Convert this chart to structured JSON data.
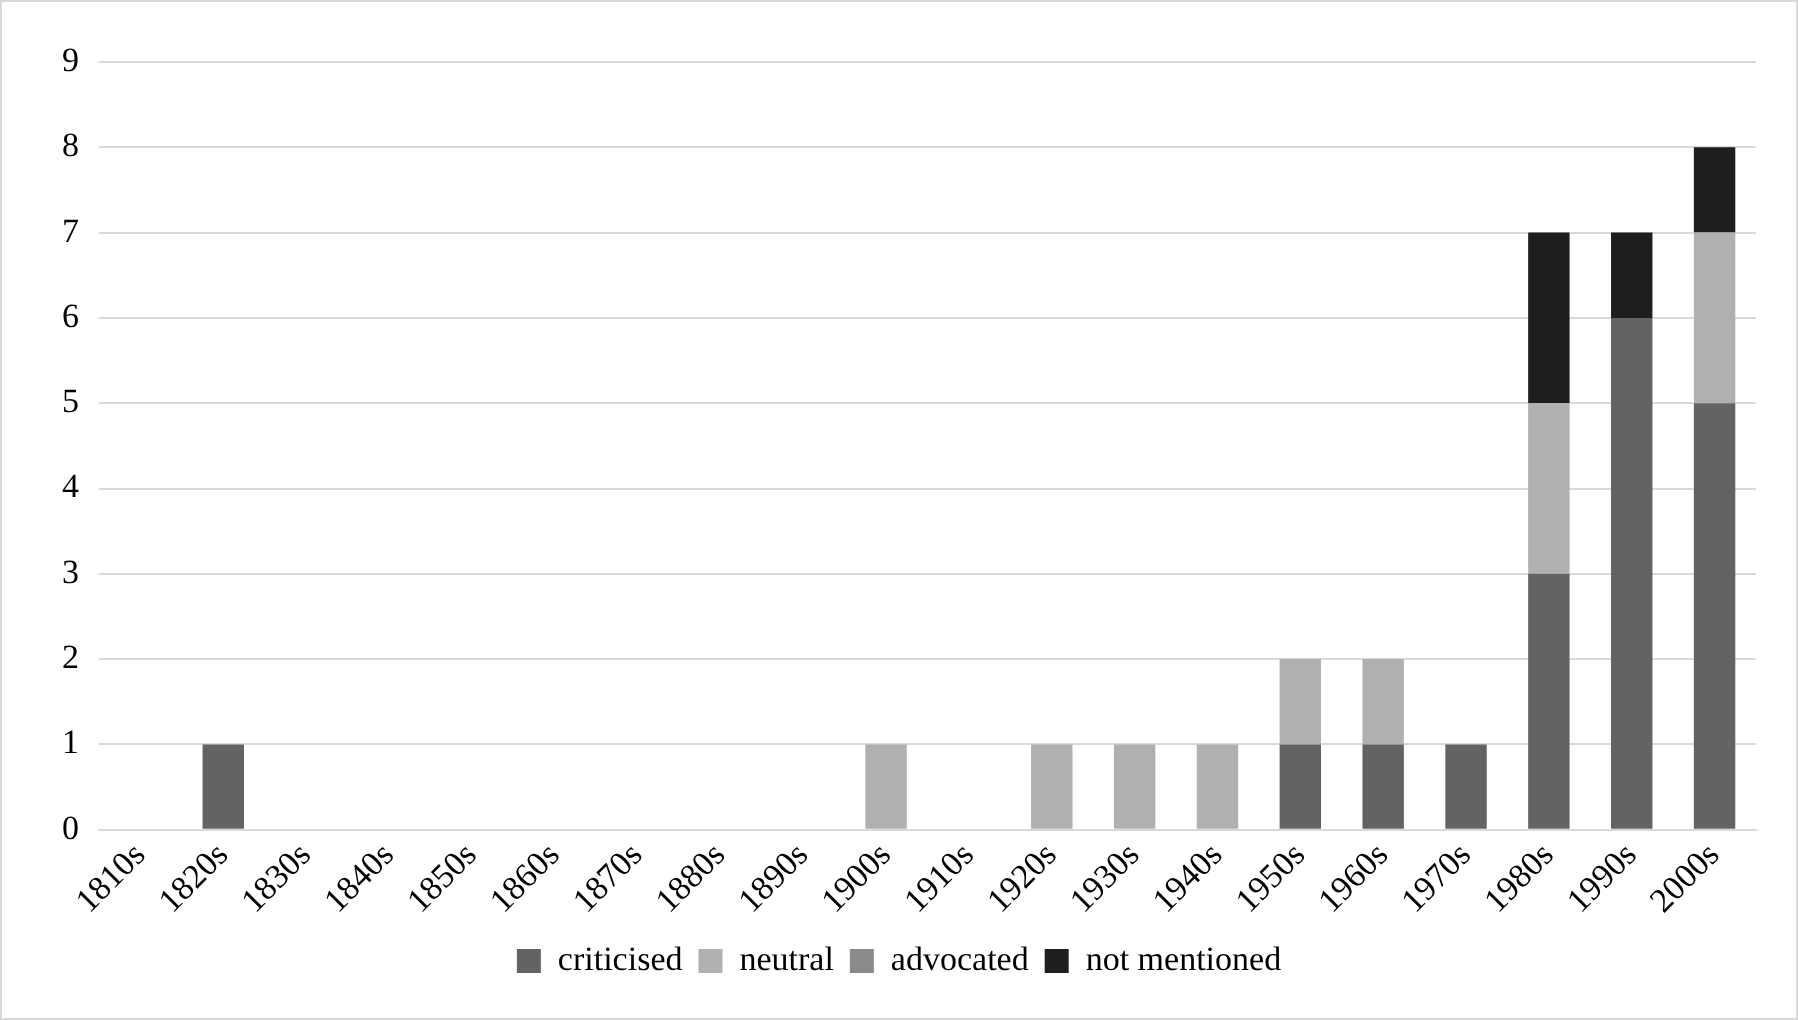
{
  "chart_data": {
    "type": "bar",
    "stacked": true,
    "categories": [
      "1810s",
      "1820s",
      "1830s",
      "1840s",
      "1850s",
      "1860s",
      "1870s",
      "1880s",
      "1890s",
      "1900s",
      "1910s",
      "1920s",
      "1930s",
      "1940s",
      "1950s",
      "1960s",
      "1970s",
      "1980s",
      "1990s",
      "2000s"
    ],
    "series": [
      {
        "name": "criticised",
        "color": "#636363",
        "values": [
          0,
          1,
          0,
          0,
          0,
          0,
          0,
          0,
          0,
          0,
          0,
          0,
          0,
          0,
          1,
          1,
          1,
          3,
          6,
          5
        ]
      },
      {
        "name": "neutral",
        "color": "#b0b0b0",
        "values": [
          0,
          0,
          0,
          0,
          0,
          0,
          0,
          0,
          0,
          1,
          0,
          1,
          1,
          1,
          1,
          1,
          0,
          2,
          0,
          2
        ]
      },
      {
        "name": "advocated",
        "color": "#8a8a8a",
        "values": [
          0,
          0,
          0,
          0,
          0,
          0,
          0,
          0,
          0,
          0,
          0,
          0,
          0,
          0,
          0,
          0,
          0,
          0,
          0,
          0
        ]
      },
      {
        "name": "not mentioned",
        "color": "#1e1e1e",
        "values": [
          0,
          0,
          0,
          0,
          0,
          0,
          0,
          0,
          0,
          0,
          0,
          0,
          0,
          0,
          0,
          0,
          0,
          2,
          1,
          1
        ]
      }
    ],
    "ylim": [
      0,
      9
    ],
    "yticks": [
      0,
      1,
      2,
      3,
      4,
      5,
      6,
      7,
      8,
      9
    ],
    "grid": "y",
    "legend": "bottom"
  }
}
